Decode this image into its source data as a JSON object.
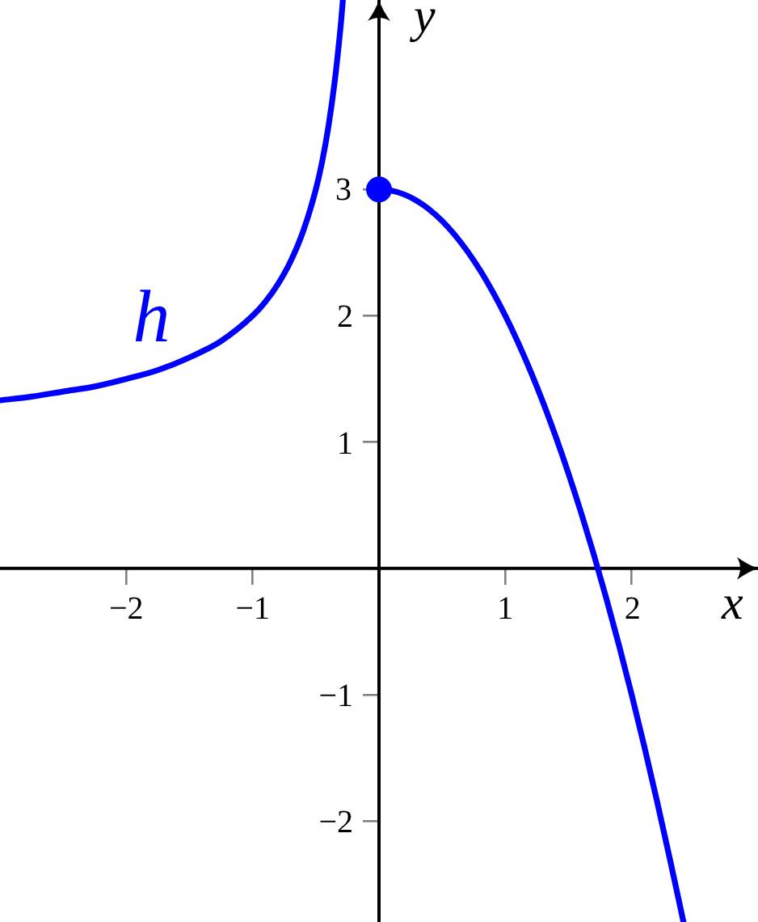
{
  "chart_data": {
    "type": "line",
    "xlabel": "x",
    "ylabel": "y",
    "xlim": [
      -3,
      3
    ],
    "ylim": [
      -2.8,
      4.5
    ],
    "xticks": [
      -2,
      -1,
      1,
      2
    ],
    "yticks": [
      -2,
      -1,
      1,
      2,
      3
    ],
    "marker": "none",
    "line_style": "solid",
    "series": [
      {
        "name": "h",
        "color": "#0000ff",
        "x": [
          -3,
          -2.75,
          -2.5,
          -2.25,
          -2,
          -1.75,
          -1.5,
          -1.25,
          -1,
          -0.9,
          -0.8,
          -0.7,
          -0.6,
          -0.5,
          -0.45,
          -0.4,
          -0.35,
          -0.32,
          -0.3,
          -0.286
        ],
        "values": [
          1.33,
          1.36,
          1.4,
          1.44,
          1.5,
          1.57,
          1.67,
          1.8,
          2,
          2.11,
          2.25,
          2.43,
          2.67,
          3,
          3.22,
          3.5,
          3.86,
          4.13,
          4.33,
          4.5
        ]
      },
      {
        "color": "#0000ff",
        "x": [
          0,
          0.1,
          0.2,
          0.3,
          0.4,
          0.5,
          0.6,
          0.7,
          0.8,
          0.9,
          1,
          1.1,
          1.2,
          1.3,
          1.4,
          1.5,
          1.6,
          1.7,
          1.8,
          1.9,
          2,
          2.1,
          2.2,
          2.3,
          2.41
        ],
        "values": [
          3,
          2.99,
          2.96,
          2.91,
          2.84,
          2.75,
          2.64,
          2.51,
          2.36,
          2.19,
          2,
          1.79,
          1.56,
          1.31,
          1.04,
          0.75,
          0.44,
          0.11,
          -0.24,
          -0.61,
          -1,
          -1.41,
          -1.84,
          -2.29,
          -2.8
        ]
      },
      {
        "type": "scatter",
        "color": "#0000ff",
        "marker": "circle",
        "x": [
          0
        ],
        "values": [
          3
        ]
      }
    ]
  }
}
